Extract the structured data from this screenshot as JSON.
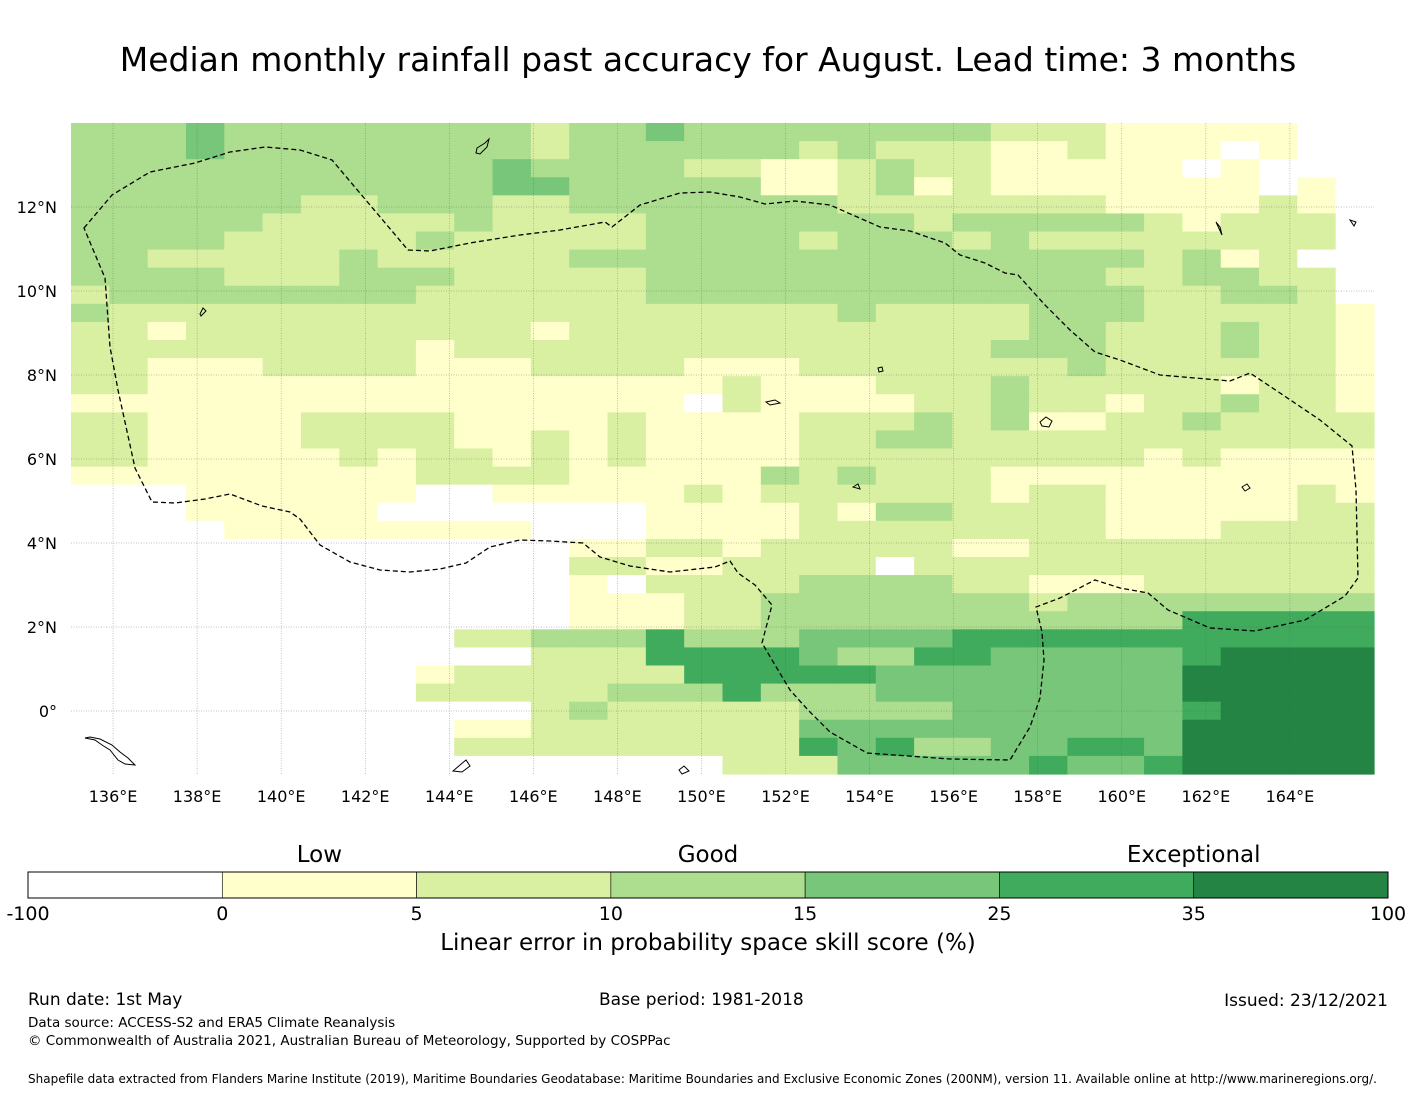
{
  "title": "Median monthly rainfall past accuracy for August. Lead time: 3 months",
  "chart_data": {
    "type": "heatmap",
    "title": "Median monthly rainfall past accuracy for August. Lead time: 3 months",
    "x_axis": {
      "range_deg": [
        135.0,
        166.0
      ],
      "ticks": [
        136,
        138,
        140,
        142,
        144,
        146,
        148,
        150,
        152,
        154,
        156,
        158,
        160,
        162,
        164
      ],
      "tick_labels": [
        "136°E",
        "138°E",
        "140°E",
        "142°E",
        "144°E",
        "146°E",
        "148°E",
        "150°E",
        "152°E",
        "154°E",
        "156°E",
        "158°E",
        "160°E",
        "162°E",
        "164°E"
      ]
    },
    "y_axis": {
      "range_deg": [
        -1.5,
        14.0
      ],
      "ticks": [
        0,
        2,
        4,
        6,
        8,
        10,
        12
      ],
      "tick_labels": [
        "0°",
        "2°N",
        "4°N",
        "6°N",
        "8°N",
        "10°N",
        "12°N"
      ]
    },
    "grid": true,
    "cell_size_deg": {
      "lon": 0.83,
      "lat": 0.55
    },
    "grid_rows_north_to_south": [
      "3334333333332334333333332221111100",
      "3334333333332333333232221121110100",
      "3333333333343333221123221111101000",
      "3333333333344333331123121111111010",
      "3333332233322333333322222221111210",
      "3333322222322223333333233333212220",
      "3333222223222223333233323222222220",
      "3322222322222333333333333333231200",
      "3333222333222223333333333332233220",
      "2333333332222223333333333333223320",
      "3222222222222222222232222333222221",
      "2212222222221222222222222332223221",
      "2222222221222222222222223332223221",
      "2211122221112222111222222232222221",
      "2211111111111111121112223222221221",
      "1111111111111111021111223221223221",
      "2211112222111121111222323112232222",
      "2211112222112121111223322222222222",
      "2211111212212121111222222222121111",
      "1111111112222111113232221111111111",
      "0001111110011111212222221221111121",
      "0001111100000001111213322221111122",
      "0000111111110001111222222221112222",
      "0000000000000112212222211222222222",
      "0000000000000221122220222222222222",
      "0000000000000102222333322111222222",
      "0000000000000111223333333233333333",
      "0000000000000111223333333333355555",
      "0000000000223335333444455555555555",
      "0000000000002225555433554444456666",
      "0000000001222222555554444444466666",
      "0000000002222233353334444444466666",
      "0000000000002322222333344444456666",
      "0000000000112222222444444444466666",
      "0000000000222222222545334455466666",
      "0000000000000000022244444544566666"
    ],
    "color_bins": [
      {
        "range": "-100–0",
        "color": "#ffffff"
      },
      {
        "range": "0–5",
        "color": "#ffffcc"
      },
      {
        "range": "5–10",
        "color": "#d9f0a3"
      },
      {
        "range": "10–15",
        "color": "#addd8e"
      },
      {
        "range": "15–25",
        "color": "#78c679"
      },
      {
        "range": "25–35",
        "color": "#41ab5d"
      },
      {
        "range": "35–100",
        "color": "#238443"
      }
    ]
  },
  "colorbar": {
    "tiers": [
      {
        "label": "Low",
        "at": 2.5
      },
      {
        "label": "Good",
        "at": 12.5
      },
      {
        "label": "Exceptional",
        "at": 35
      }
    ],
    "tick_labels": [
      "-100",
      "0",
      "5",
      "10",
      "15",
      "25",
      "35",
      "100"
    ],
    "title": "Linear error in probability space skill score (%)"
  },
  "footer": {
    "run_date": "Run date: 1st May",
    "base_period": "Base period: 1981-2018",
    "issued": "Issued: 23/12/2021",
    "data_source": "Data source: ACCESS-S2 and ERA5 Climate Reanalysis",
    "copyright": "© Commonwealth of Australia 2021, Australian Bureau of Meteorology, Supported by COSPPac",
    "shapefile": "Shapefile data extracted from Flanders Marine Institute (2019), Maritime Boundaries Geodatabase: Maritime Boundaries and Exclusive Economic Zones (200NM), version 11. Available online at http://www.marineregions.org/."
  }
}
